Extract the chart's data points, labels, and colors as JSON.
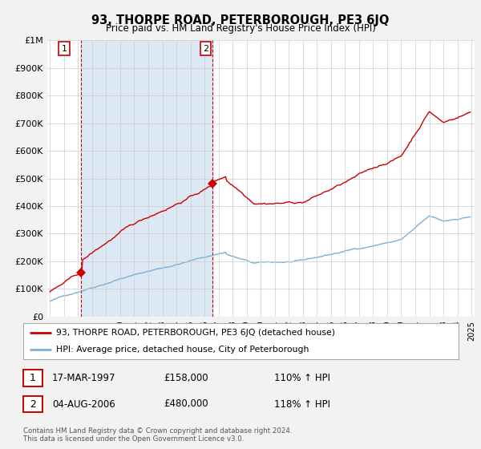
{
  "title": "93, THORPE ROAD, PETERBOROUGH, PE3 6JQ",
  "subtitle": "Price paid vs. HM Land Registry's House Price Index (HPI)",
  "legend_line1": "93, THORPE ROAD, PETERBOROUGH, PE3 6JQ (detached house)",
  "legend_line2": "HPI: Average price, detached house, City of Peterborough",
  "footer1": "Contains HM Land Registry data © Crown copyright and database right 2024.",
  "footer2": "This data is licensed under the Open Government Licence v3.0.",
  "point1_date": "17-MAR-1997",
  "point1_price": "£158,000",
  "point1_hpi": "110% ↑ HPI",
  "point2_date": "04-AUG-2006",
  "point2_price": "£480,000",
  "point2_hpi": "118% ↑ HPI",
  "red_color": "#cc0000",
  "blue_color": "#7bafd4",
  "shade_color": "#dce9f5",
  "dashed_color": "#cc0000",
  "ylim": [
    0,
    1000000
  ],
  "yticks": [
    0,
    100000,
    200000,
    300000,
    400000,
    500000,
    600000,
    700000,
    800000,
    900000,
    1000000
  ],
  "ytick_labels": [
    "£0",
    "£100K",
    "£200K",
    "£300K",
    "£400K",
    "£500K",
    "£600K",
    "£700K",
    "£800K",
    "£900K",
    "£1M"
  ],
  "sale1_x": 1997.21,
  "sale1_y": 158000,
  "sale2_x": 2006.58,
  "sale2_y": 480000,
  "background_color": "#f2f2f2",
  "plot_bg_color": "#ffffff",
  "grid_color": "#cccccc",
  "xlim_left": 1994.8,
  "xlim_right": 2025.2
}
